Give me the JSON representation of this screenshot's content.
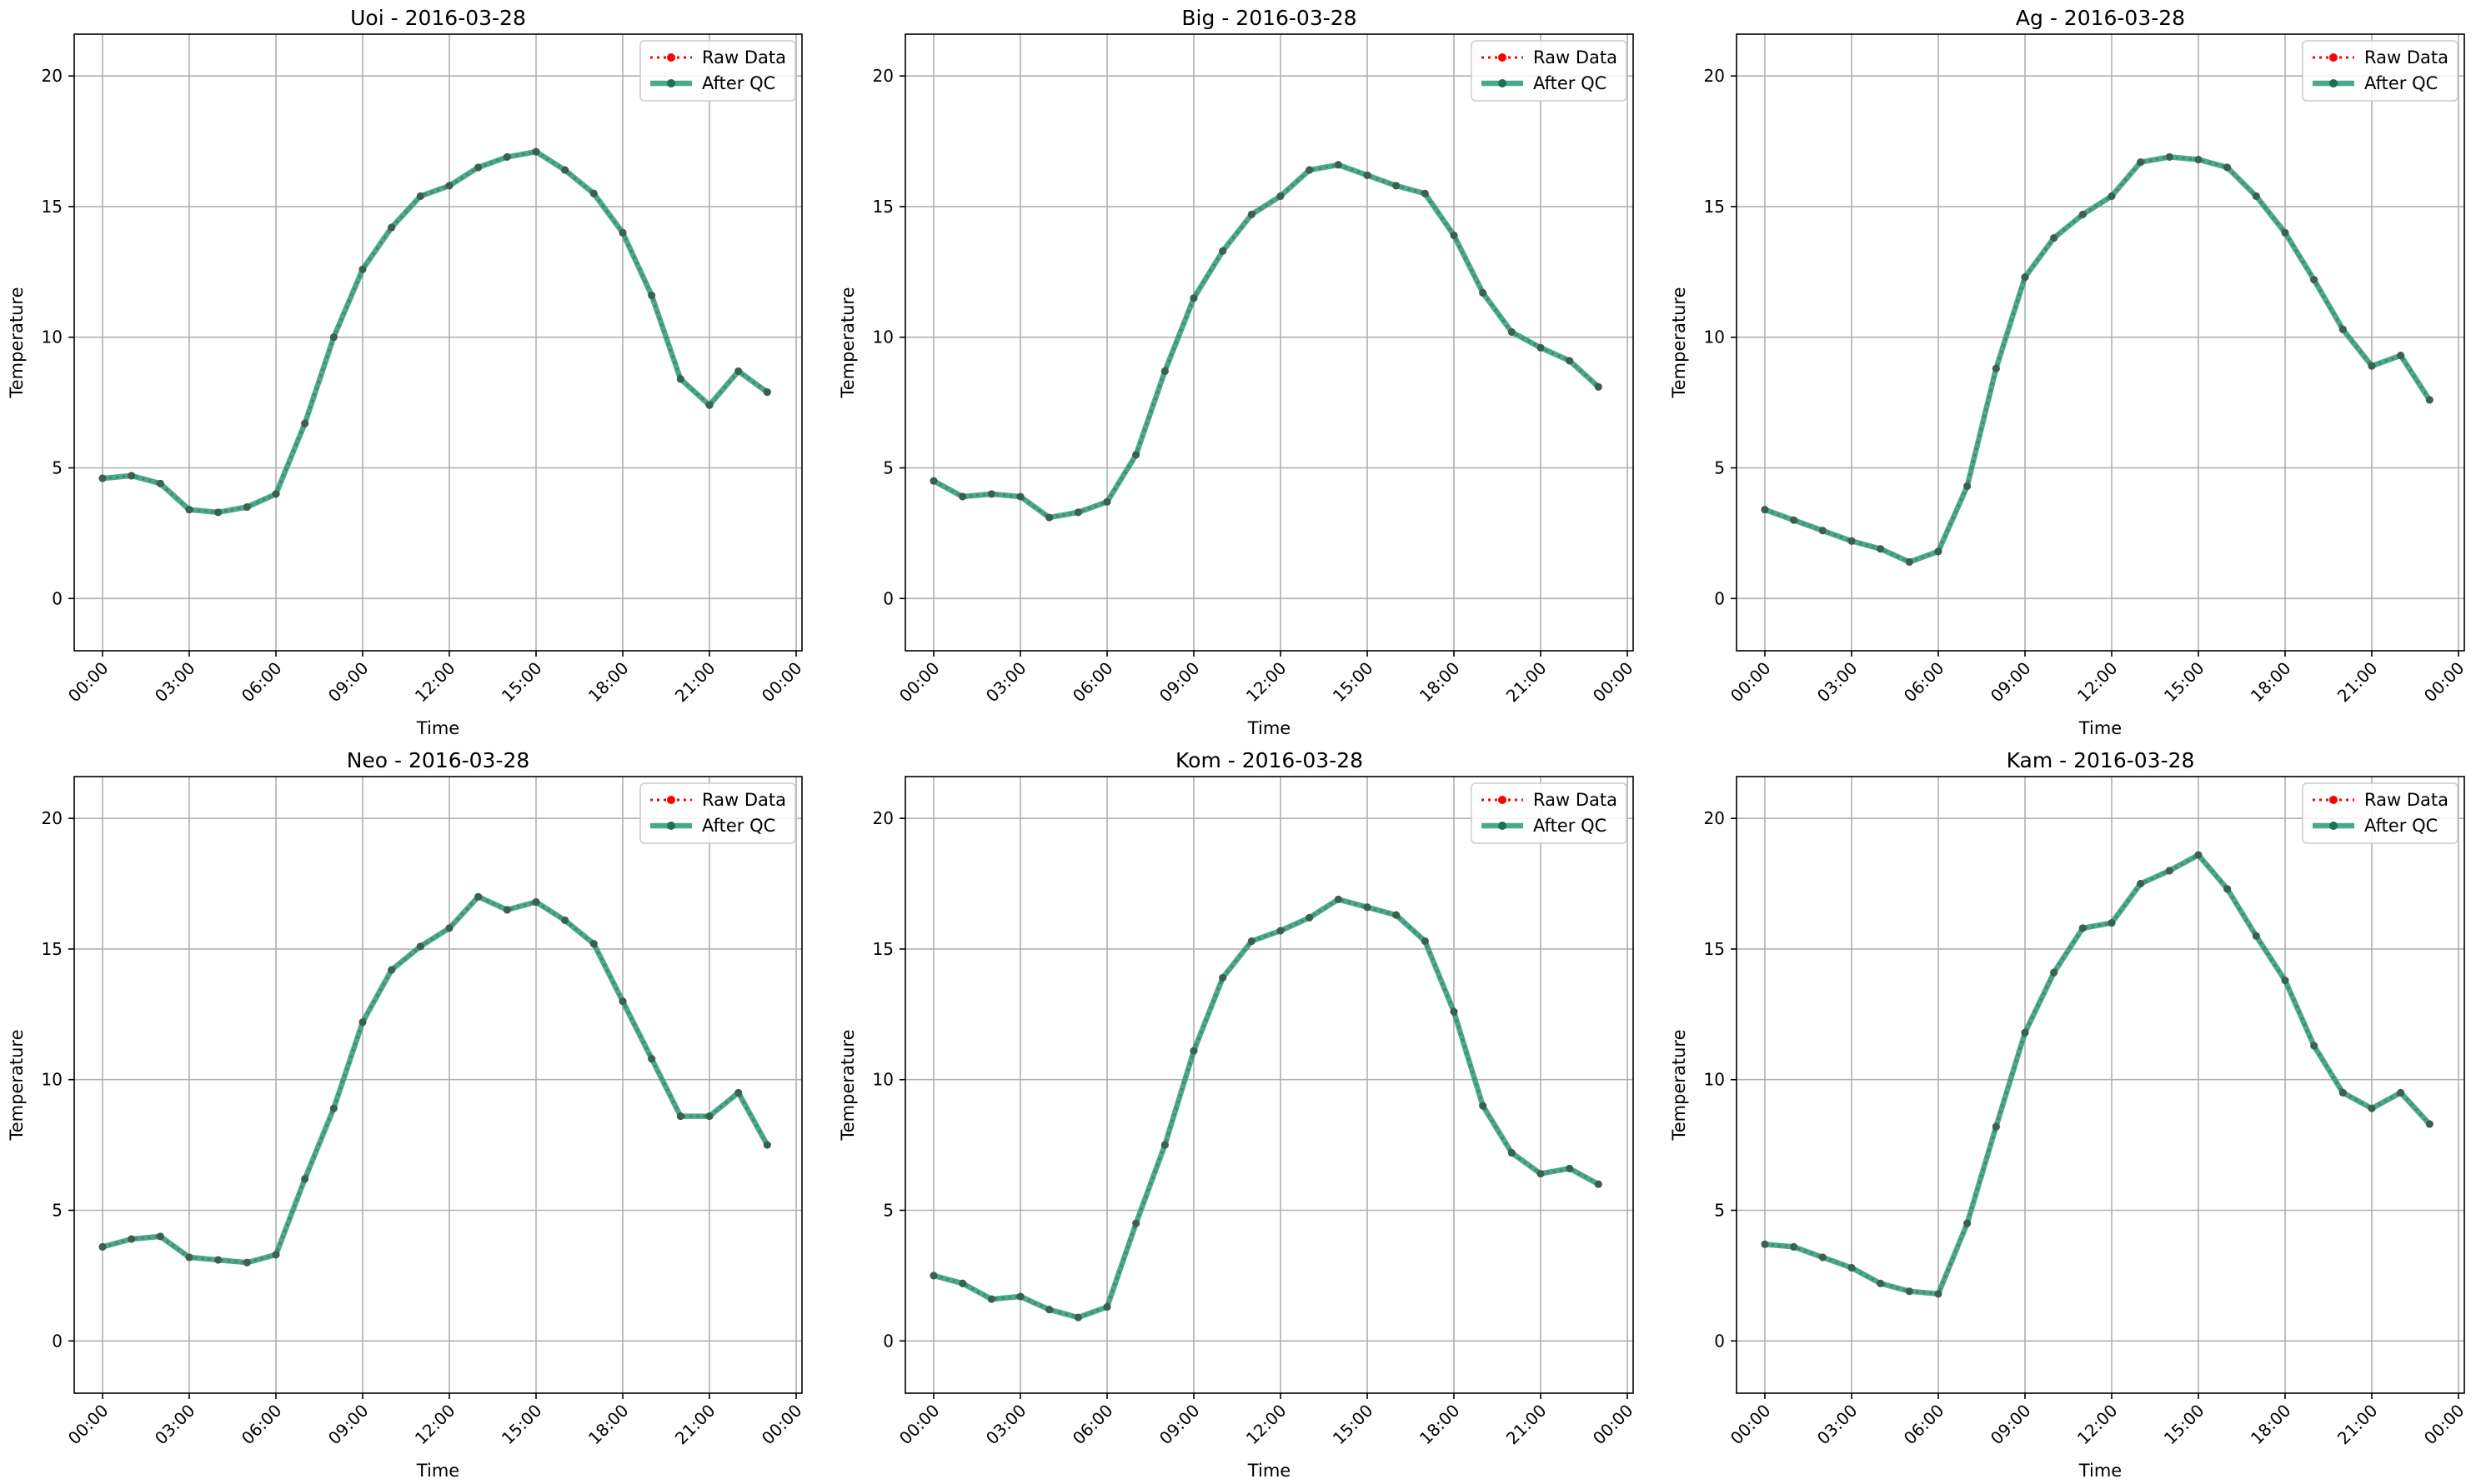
{
  "chart_data": [
    {
      "type": "line",
      "title": "Uoi - 2016-03-28",
      "xlabel": "Time",
      "ylabel": "Temperature",
      "ylim": [
        -2,
        21.6
      ],
      "yticks": [
        0,
        5,
        10,
        15,
        20
      ],
      "xticks": [
        "00:00",
        "03:00",
        "06:00",
        "09:00",
        "12:00",
        "15:00",
        "18:00",
        "21:00",
        "00:00"
      ],
      "legend": "top-right",
      "grid": true,
      "x": [
        "00:00",
        "01:00",
        "02:00",
        "03:00",
        "04:00",
        "05:00",
        "06:00",
        "07:00",
        "08:00",
        "09:00",
        "10:00",
        "11:00",
        "12:00",
        "13:00",
        "14:00",
        "15:00",
        "16:00",
        "17:00",
        "18:00",
        "19:00",
        "20:00",
        "21:00",
        "22:00",
        "23:00"
      ],
      "series": [
        {
          "name": "Raw Data",
          "color": "#ff0000",
          "values": [
            4.6,
            4.7,
            4.4,
            3.4,
            3.3,
            3.5,
            4.0,
            6.7,
            10.0,
            12.6,
            14.2,
            15.4,
            15.8,
            16.5,
            16.9,
            17.1,
            16.4,
            15.5,
            14.0,
            11.6,
            8.4,
            7.4,
            8.7,
            7.9
          ]
        },
        {
          "name": "After QC",
          "color": "#2a9a7a",
          "values": [
            4.6,
            4.7,
            4.4,
            3.4,
            3.3,
            3.5,
            4.0,
            6.7,
            10.0,
            12.6,
            14.2,
            15.4,
            15.8,
            16.5,
            16.9,
            17.1,
            16.4,
            15.5,
            14.0,
            11.6,
            8.4,
            7.4,
            8.7,
            7.9
          ]
        }
      ]
    },
    {
      "type": "line",
      "title": "Big - 2016-03-28",
      "xlabel": "Time",
      "ylabel": "Temperature",
      "ylim": [
        -2,
        21.6
      ],
      "yticks": [
        0,
        5,
        10,
        15,
        20
      ],
      "xticks": [
        "00:00",
        "03:00",
        "06:00",
        "09:00",
        "12:00",
        "15:00",
        "18:00",
        "21:00",
        "00:00"
      ],
      "legend": "top-right",
      "grid": true,
      "x": [
        "00:00",
        "01:00",
        "02:00",
        "03:00",
        "04:00",
        "05:00",
        "06:00",
        "07:00",
        "08:00",
        "09:00",
        "10:00",
        "11:00",
        "12:00",
        "13:00",
        "14:00",
        "15:00",
        "16:00",
        "17:00",
        "18:00",
        "19:00",
        "20:00",
        "21:00",
        "22:00",
        "23:00"
      ],
      "series": [
        {
          "name": "Raw Data",
          "color": "#ff0000",
          "values": [
            4.5,
            3.9,
            4.0,
            3.9,
            3.1,
            3.3,
            3.7,
            5.5,
            8.7,
            11.5,
            13.3,
            14.7,
            15.4,
            16.4,
            16.6,
            16.2,
            15.8,
            15.5,
            13.9,
            11.7,
            10.2,
            9.6,
            9.1,
            8.1
          ]
        },
        {
          "name": "After QC",
          "color": "#2a9a7a",
          "values": [
            4.5,
            3.9,
            4.0,
            3.9,
            3.1,
            3.3,
            3.7,
            5.5,
            8.7,
            11.5,
            13.3,
            14.7,
            15.4,
            16.4,
            16.6,
            16.2,
            15.8,
            15.5,
            13.9,
            11.7,
            10.2,
            9.6,
            9.1,
            8.1
          ]
        }
      ]
    },
    {
      "type": "line",
      "title": "Ag - 2016-03-28",
      "xlabel": "Time",
      "ylabel": "Temperature",
      "ylim": [
        -2,
        21.6
      ],
      "yticks": [
        0,
        5,
        10,
        15,
        20
      ],
      "xticks": [
        "00:00",
        "03:00",
        "06:00",
        "09:00",
        "12:00",
        "15:00",
        "18:00",
        "21:00",
        "00:00"
      ],
      "legend": "top-right",
      "grid": true,
      "x": [
        "00:00",
        "01:00",
        "02:00",
        "03:00",
        "04:00",
        "05:00",
        "06:00",
        "07:00",
        "08:00",
        "09:00",
        "10:00",
        "11:00",
        "12:00",
        "13:00",
        "14:00",
        "15:00",
        "16:00",
        "17:00",
        "18:00",
        "19:00",
        "20:00",
        "21:00",
        "22:00",
        "23:00"
      ],
      "series": [
        {
          "name": "Raw Data",
          "color": "#ff0000",
          "values": [
            3.4,
            3.0,
            2.6,
            2.2,
            1.9,
            1.4,
            1.8,
            4.3,
            8.8,
            12.3,
            13.8,
            14.7,
            15.4,
            16.7,
            16.9,
            16.8,
            16.5,
            15.4,
            14.0,
            12.2,
            10.3,
            8.9,
            9.3,
            7.6
          ]
        },
        {
          "name": "After QC",
          "color": "#2a9a7a",
          "values": [
            3.4,
            3.0,
            2.6,
            2.2,
            1.9,
            1.4,
            1.8,
            4.3,
            8.8,
            12.3,
            13.8,
            14.7,
            15.4,
            16.7,
            16.9,
            16.8,
            16.5,
            15.4,
            14.0,
            12.2,
            10.3,
            8.9,
            9.3,
            7.6
          ]
        }
      ]
    },
    {
      "type": "line",
      "title": "Neo - 2016-03-28",
      "xlabel": "Time",
      "ylabel": "Temperature",
      "ylim": [
        -2,
        21.6
      ],
      "yticks": [
        0,
        5,
        10,
        15,
        20
      ],
      "xticks": [
        "00:00",
        "03:00",
        "06:00",
        "09:00",
        "12:00",
        "15:00",
        "18:00",
        "21:00",
        "00:00"
      ],
      "legend": "top-right",
      "grid": true,
      "x": [
        "00:00",
        "01:00",
        "02:00",
        "03:00",
        "04:00",
        "05:00",
        "06:00",
        "07:00",
        "08:00",
        "09:00",
        "10:00",
        "11:00",
        "12:00",
        "13:00",
        "14:00",
        "15:00",
        "16:00",
        "17:00",
        "18:00",
        "19:00",
        "20:00",
        "21:00",
        "22:00",
        "23:00"
      ],
      "series": [
        {
          "name": "Raw Data",
          "color": "#ff0000",
          "values": [
            3.6,
            3.9,
            4.0,
            3.2,
            3.1,
            3.0,
            3.3,
            6.2,
            8.9,
            12.2,
            14.2,
            15.1,
            15.8,
            17.0,
            16.5,
            16.8,
            16.1,
            15.2,
            13.0,
            10.8,
            8.6,
            8.6,
            9.5,
            7.5
          ]
        },
        {
          "name": "After QC",
          "color": "#2a9a7a",
          "values": [
            3.6,
            3.9,
            4.0,
            3.2,
            3.1,
            3.0,
            3.3,
            6.2,
            8.9,
            12.2,
            14.2,
            15.1,
            15.8,
            17.0,
            16.5,
            16.8,
            16.1,
            15.2,
            13.0,
            10.8,
            8.6,
            8.6,
            9.5,
            7.5
          ]
        }
      ]
    },
    {
      "type": "line",
      "title": "Kom - 2016-03-28",
      "xlabel": "Time",
      "ylabel": "Temperature",
      "ylim": [
        -2,
        21.6
      ],
      "yticks": [
        0,
        5,
        10,
        15,
        20
      ],
      "xticks": [
        "00:00",
        "03:00",
        "06:00",
        "09:00",
        "12:00",
        "15:00",
        "18:00",
        "21:00",
        "00:00"
      ],
      "legend": "top-right",
      "grid": true,
      "x": [
        "00:00",
        "01:00",
        "02:00",
        "03:00",
        "04:00",
        "05:00",
        "06:00",
        "07:00",
        "08:00",
        "09:00",
        "10:00",
        "11:00",
        "12:00",
        "13:00",
        "14:00",
        "15:00",
        "16:00",
        "17:00",
        "18:00",
        "19:00",
        "20:00",
        "21:00",
        "22:00",
        "23:00"
      ],
      "series": [
        {
          "name": "Raw Data",
          "color": "#ff0000",
          "values": [
            2.5,
            2.2,
            1.6,
            1.7,
            1.2,
            0.9,
            1.3,
            4.5,
            7.5,
            11.1,
            13.9,
            15.3,
            15.7,
            16.2,
            16.9,
            16.6,
            16.3,
            15.3,
            12.6,
            9.0,
            7.2,
            6.4,
            6.6,
            6.0
          ]
        },
        {
          "name": "After QC",
          "color": "#2a9a7a",
          "values": [
            2.5,
            2.2,
            1.6,
            1.7,
            1.2,
            0.9,
            1.3,
            4.5,
            7.5,
            11.1,
            13.9,
            15.3,
            15.7,
            16.2,
            16.9,
            16.6,
            16.3,
            15.3,
            12.6,
            9.0,
            7.2,
            6.4,
            6.6,
            6.0
          ]
        }
      ]
    },
    {
      "type": "line",
      "title": "Kam - 2016-03-28",
      "xlabel": "Time",
      "ylabel": "Temperature",
      "ylim": [
        -2,
        21.6
      ],
      "yticks": [
        0,
        5,
        10,
        15,
        20
      ],
      "xticks": [
        "00:00",
        "03:00",
        "06:00",
        "09:00",
        "12:00",
        "15:00",
        "18:00",
        "21:00",
        "00:00"
      ],
      "legend": "top-right",
      "grid": true,
      "x": [
        "00:00",
        "01:00",
        "02:00",
        "03:00",
        "04:00",
        "05:00",
        "06:00",
        "07:00",
        "08:00",
        "09:00",
        "10:00",
        "11:00",
        "12:00",
        "13:00",
        "14:00",
        "15:00",
        "16:00",
        "17:00",
        "18:00",
        "19:00",
        "20:00",
        "21:00",
        "22:00",
        "23:00"
      ],
      "series": [
        {
          "name": "Raw Data",
          "color": "#ff0000",
          "values": [
            3.7,
            3.6,
            3.2,
            2.8,
            2.2,
            1.9,
            1.8,
            4.5,
            8.2,
            11.8,
            14.1,
            15.8,
            16.0,
            17.5,
            18.0,
            18.6,
            17.3,
            15.5,
            13.8,
            11.3,
            9.5,
            8.9,
            9.5,
            8.3
          ]
        },
        {
          "name": "After QC",
          "color": "#2a9a7a",
          "values": [
            3.7,
            3.6,
            3.2,
            2.8,
            2.2,
            1.9,
            1.8,
            4.5,
            8.2,
            11.8,
            14.1,
            15.8,
            16.0,
            17.5,
            18.0,
            18.6,
            17.3,
            15.5,
            13.8,
            11.3,
            9.5,
            8.9,
            9.5,
            8.3
          ]
        }
      ]
    }
  ]
}
